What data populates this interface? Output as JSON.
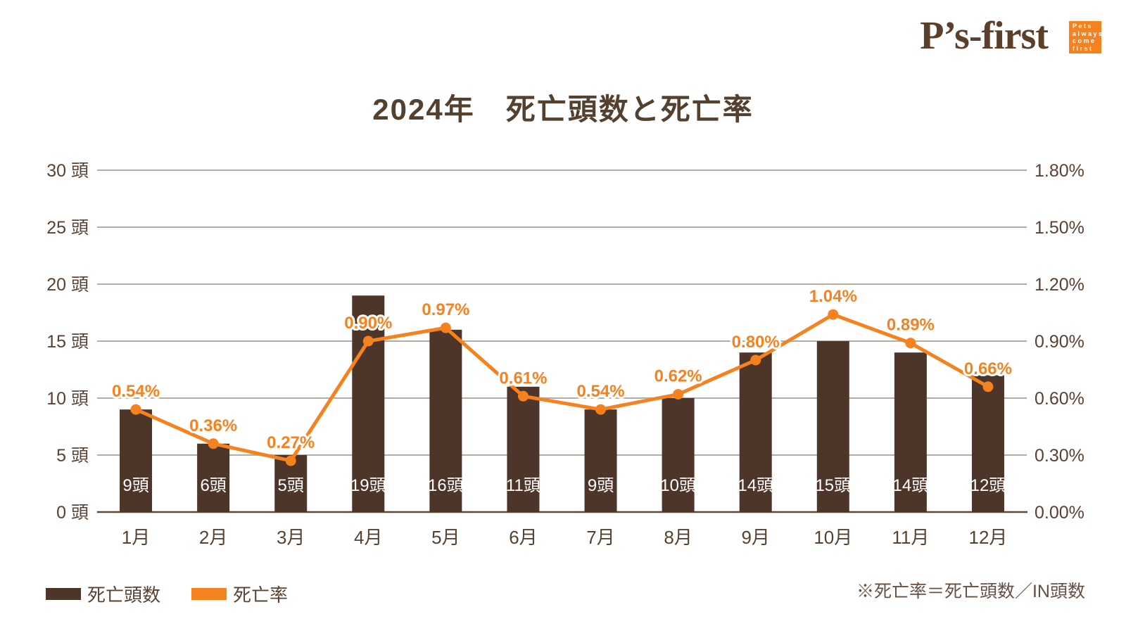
{
  "logo": {
    "text": "P’s-first",
    "badge_lines": [
      "Pets",
      "always",
      "come",
      "first"
    ]
  },
  "title": "2024年　死亡頭数と死亡率",
  "chart_data": {
    "type": "bar+line combo",
    "title": "2024年　死亡頭数と死亡率",
    "categories": [
      "1月",
      "2月",
      "3月",
      "4月",
      "5月",
      "6月",
      "7月",
      "8月",
      "9月",
      "10月",
      "11月",
      "12月"
    ],
    "series": [
      {
        "name": "死亡頭数",
        "type": "bar",
        "axis": "left",
        "unit": "頭",
        "values": [
          9,
          6,
          5,
          19,
          16,
          11,
          9,
          10,
          14,
          15,
          14,
          12
        ],
        "data_labels": [
          "9頭",
          "6頭",
          "5頭",
          "19頭",
          "16頭",
          "11頭",
          "9頭",
          "10頭",
          "14頭",
          "15頭",
          "14頭",
          "12頭"
        ],
        "color": "#4E3529"
      },
      {
        "name": "死亡率",
        "type": "line",
        "axis": "right",
        "unit": "%",
        "values": [
          0.54,
          0.36,
          0.27,
          0.9,
          0.97,
          0.61,
          0.54,
          0.62,
          0.8,
          1.04,
          0.89,
          0.66
        ],
        "data_labels": [
          "0.54%",
          "0.36%",
          "0.27%",
          "0.90%",
          "0.97%",
          "0.61%",
          "0.54%",
          "0.62%",
          "0.80%",
          "1.04%",
          "0.89%",
          "0.66%"
        ],
        "color": "#F5821F"
      }
    ],
    "left_axis": {
      "min": 0,
      "max": 30,
      "step": 5,
      "unit": "頭",
      "ticks": [
        "0 頭",
        "5 頭",
        "10 頭",
        "15 頭",
        "20 頭",
        "25 頭",
        "30 頭"
      ]
    },
    "right_axis": {
      "min": 0,
      "max": 1.8,
      "step": 0.3,
      "unit": "%",
      "ticks": [
        "0.00%",
        "0.30%",
        "0.60%",
        "0.90%",
        "1.20%",
        "1.50%",
        "1.80%"
      ]
    },
    "grid": true,
    "legend_position": "bottom-left"
  },
  "legend": {
    "items": [
      {
        "label": "死亡頭数",
        "color": "#4E3529"
      },
      {
        "label": "死亡率",
        "color": "#F5821F"
      }
    ]
  },
  "footnote": "※死亡率＝死亡頭数／IN頭数",
  "colors": {
    "bar": "#4E3529",
    "line": "#F5821F",
    "accent_orange": "#F5821F",
    "grid_line": "#B5ACA2",
    "axis_line": "#5E4839",
    "axis_text": "#5A4233",
    "title_text": "#54402F",
    "logo_text": "#5B3F2B",
    "bar_label_text": "#FFFFFF",
    "background": "#FFFFFF"
  }
}
